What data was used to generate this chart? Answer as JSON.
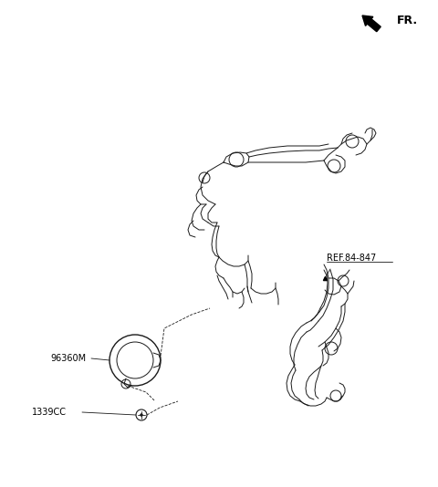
{
  "bg_color": "#ffffff",
  "line_color": "#1a1a1a",
  "fig_width": 4.8,
  "fig_height": 5.34,
  "dpi": 100,
  "fr_label": "FR.",
  "ref_label": "REF.84-847",
  "part1_label": "96360M",
  "part2_label": "1339CC"
}
